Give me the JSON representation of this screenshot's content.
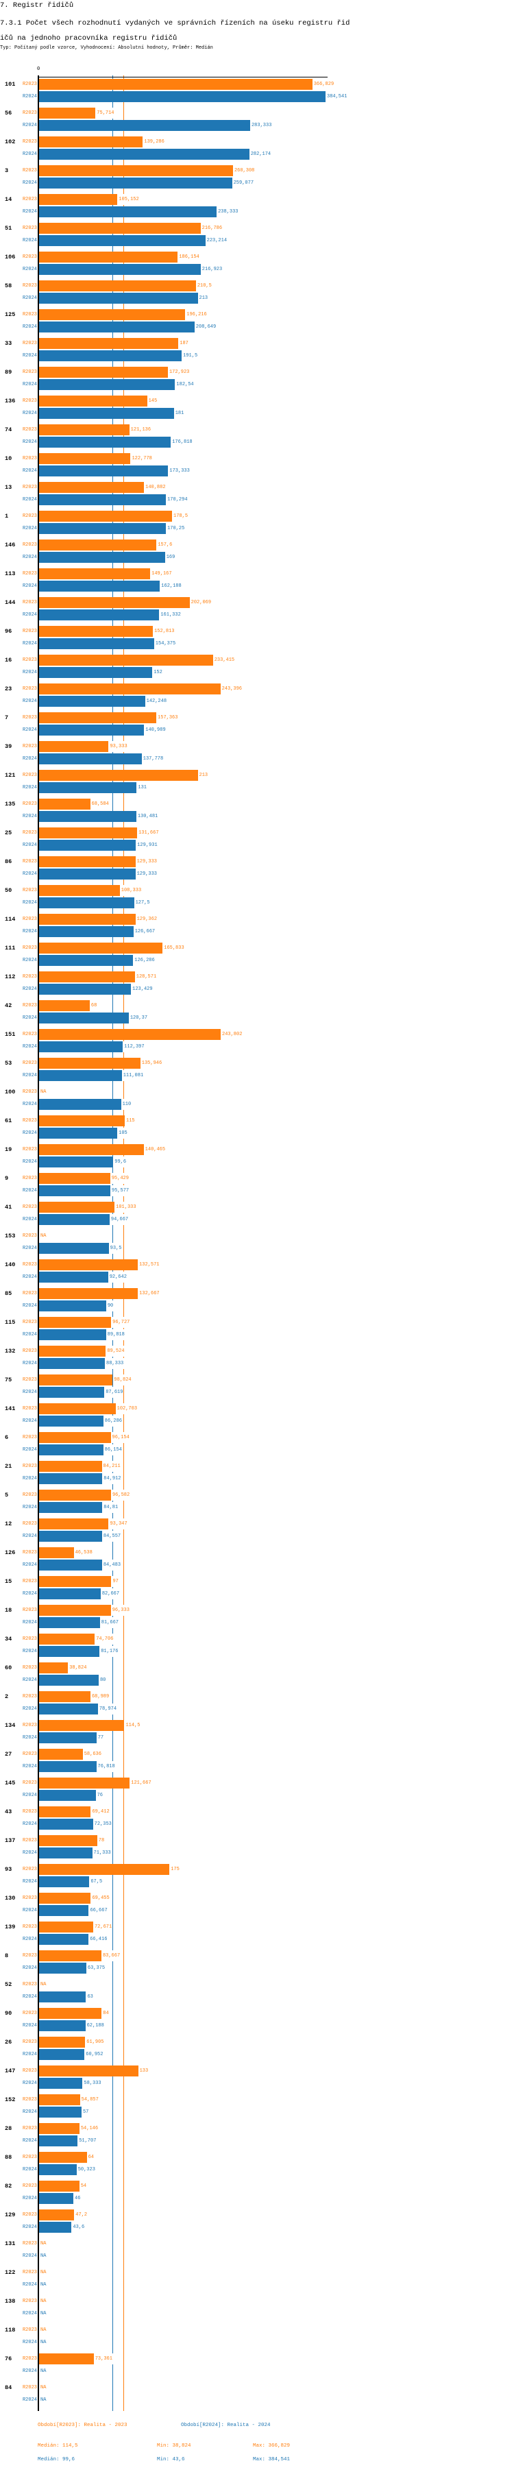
{
  "header": {
    "section_title": "7. Registr řidičů",
    "chart_title": "7.3.1 Počet všech rozhodnutí vydaných ve správních řízeních na úseku registru řidičů na jednoho pracovníka registru řidičů",
    "subtitle": "Typ: Počítaný podle vzorce, Vyhodnocení: Absolutní hodnoty, Průměr: Medián"
  },
  "chart_data": {
    "type": "bar",
    "orientation": "horizontal",
    "x_tick_labels": [
      "0"
    ],
    "na_label": "NA",
    "colors": {
      "R2023": "#ff7f0e",
      "R2024": "#1f77b4",
      "axis": "#000000"
    },
    "categories": [
      "101",
      "56",
      "102",
      "3",
      "14",
      "51",
      "106",
      "58",
      "125",
      "33",
      "89",
      "136",
      "74",
      "10",
      "13",
      "1",
      "146",
      "113",
      "144",
      "96",
      "16",
      "23",
      "7",
      "39",
      "121",
      "135",
      "25",
      "86",
      "50",
      "114",
      "111",
      "112",
      "42",
      "151",
      "53",
      "100",
      "61",
      "19",
      "9",
      "41",
      "153",
      "140",
      "85",
      "115",
      "132",
      "75",
      "141",
      "6",
      "21",
      "5",
      "12",
      "126",
      "15",
      "18",
      "34",
      "60",
      "2",
      "134",
      "27",
      "145",
      "43",
      "137",
      "93",
      "130",
      "139",
      "8",
      "52",
      "90",
      "26",
      "147",
      "152",
      "28",
      "88",
      "82",
      "129",
      "131",
      "122",
      "138",
      "118",
      "76",
      "84"
    ],
    "series": [
      {
        "name": "R2023",
        "values": [
          366.829,
          75.714,
          139.286,
          260.308,
          105.152,
          216.786,
          186.154,
          210.5,
          196.216,
          187,
          172.923,
          145,
          121.136,
          122.778,
          140.882,
          178.5,
          157.6,
          149.167,
          202.069,
          152.813,
          233.415,
          243.396,
          157.363,
          93.333,
          213,
          68.584,
          131.667,
          129.333,
          108.333,
          129.362,
          165.833,
          128.571,
          68,
          243.802,
          135.946,
          null,
          115,
          140.465,
          95.429,
          101.333,
          null,
          132.571,
          132.667,
          96.727,
          89.524,
          98.824,
          102.703,
          96.154,
          84.211,
          96.582,
          93.347,
          46.538,
          97,
          96.333,
          74.706,
          38.824,
          68.989,
          114.5,
          58.636,
          121.667,
          69.412,
          78,
          175,
          69.455,
          72.671,
          83.667,
          null,
          84,
          61.905,
          133,
          54.857,
          54.146,
          64,
          54,
          47.2,
          null,
          null,
          null,
          null,
          73.361,
          null
        ]
      },
      {
        "name": "R2024",
        "values": [
          384.541,
          283.333,
          282.174,
          259.077,
          238.333,
          223.214,
          216.923,
          213,
          208.649,
          191.5,
          182.54,
          181,
          176.818,
          173.333,
          170.294,
          170.25,
          169,
          162.188,
          161.332,
          154.375,
          152,
          142.248,
          140.989,
          137.778,
          131,
          130.481,
          129.931,
          129.333,
          127.5,
          126.667,
          126.286,
          123.429,
          120.37,
          112.397,
          111.081,
          110,
          105,
          99.6,
          95.577,
          94.667,
          93.5,
          92.642,
          90,
          89.818,
          88.333,
          87.619,
          86.286,
          86.154,
          84.912,
          84.81,
          84.557,
          84.483,
          82.667,
          81.667,
          81.176,
          80,
          78.974,
          77,
          76.818,
          76,
          72.353,
          71.333,
          67.5,
          66.667,
          66.416,
          63.375,
          63,
          62.188,
          60.952,
          58.333,
          57,
          51.707,
          50.323,
          46,
          43.6,
          null,
          null,
          null,
          null,
          null,
          null
        ]
      }
    ],
    "medians": {
      "R2023": 114.5,
      "R2024": 99.6
    },
    "xlim": [
      0,
      384.541
    ]
  },
  "legend": {
    "r2023_label": "Období[R2023]: Realita - 2023",
    "r2024_label": "Období[R2024]: Realita - 2024",
    "r2023_median": "Medián: 114,5",
    "r2023_min": "Min: 38,824",
    "r2023_max": "Max: 366,829",
    "r2024_median": "Medián: 99,6",
    "r2024_min": "Min: 43,6",
    "r2024_max": "Max: 384,541"
  }
}
